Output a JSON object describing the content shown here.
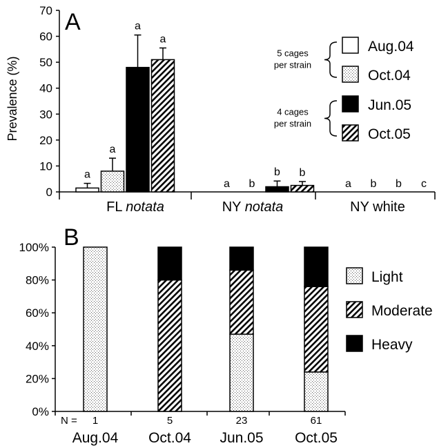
{
  "chart_data": [
    {
      "type": "bar",
      "panel_label": "A",
      "ylabel": "Prevalence (%)",
      "ylim": [
        0,
        70
      ],
      "yticks": [
        0,
        10,
        20,
        30,
        40,
        50,
        60,
        70
      ],
      "categories": [
        {
          "prefix": "FL ",
          "italic": "notata"
        },
        {
          "prefix": "NY ",
          "italic": "notata"
        },
        {
          "prefix": "NY white",
          "italic": ""
        }
      ],
      "series": [
        {
          "name": "Aug.04",
          "pattern": "open",
          "values": [
            1.5,
            0,
            0
          ],
          "errors": [
            1.8,
            0,
            0
          ],
          "letters": [
            "a",
            "a",
            "a"
          ]
        },
        {
          "name": "Oct.04",
          "pattern": "dots",
          "values": [
            8,
            0,
            0
          ],
          "errors": [
            5,
            0,
            0
          ],
          "letters": [
            "a",
            "b",
            "b"
          ]
        },
        {
          "name": "Jun.05",
          "pattern": "solid",
          "values": [
            48,
            2,
            0
          ],
          "errors": [
            12.5,
            2.2,
            0
          ],
          "letters": [
            "a",
            "b",
            "b"
          ]
        },
        {
          "name": "Oct.05",
          "pattern": "hatched",
          "values": [
            51,
            2.5,
            0
          ],
          "errors": [
            4.5,
            1.5,
            0
          ],
          "letters": [
            "a",
            "b",
            "c"
          ]
        }
      ],
      "legend_groups": [
        {
          "line1": "5 cages",
          "line2": "per strain"
        },
        {
          "line1": "4 cages",
          "line2": "per strain"
        }
      ]
    },
    {
      "type": "stacked-bar",
      "panel_label": "B",
      "ylim": [
        0,
        100
      ],
      "yticks": [
        "0%",
        "20%",
        "40%",
        "60%",
        "80%",
        "100%"
      ],
      "n_prefix": "N =",
      "categories": [
        "Aug.04",
        "Oct.04",
        "Jun.05",
        "Oct.05"
      ],
      "n_values": [
        "1",
        "5",
        "23",
        "61"
      ],
      "series": [
        {
          "name": "Light",
          "pattern": "dots",
          "values": [
            100,
            0,
            47,
            24
          ]
        },
        {
          "name": "Moderate",
          "pattern": "hatched",
          "values": [
            0,
            80,
            39,
            52
          ]
        },
        {
          "name": "Heavy",
          "pattern": "solid",
          "values": [
            0,
            20,
            14,
            24
          ]
        }
      ]
    }
  ]
}
